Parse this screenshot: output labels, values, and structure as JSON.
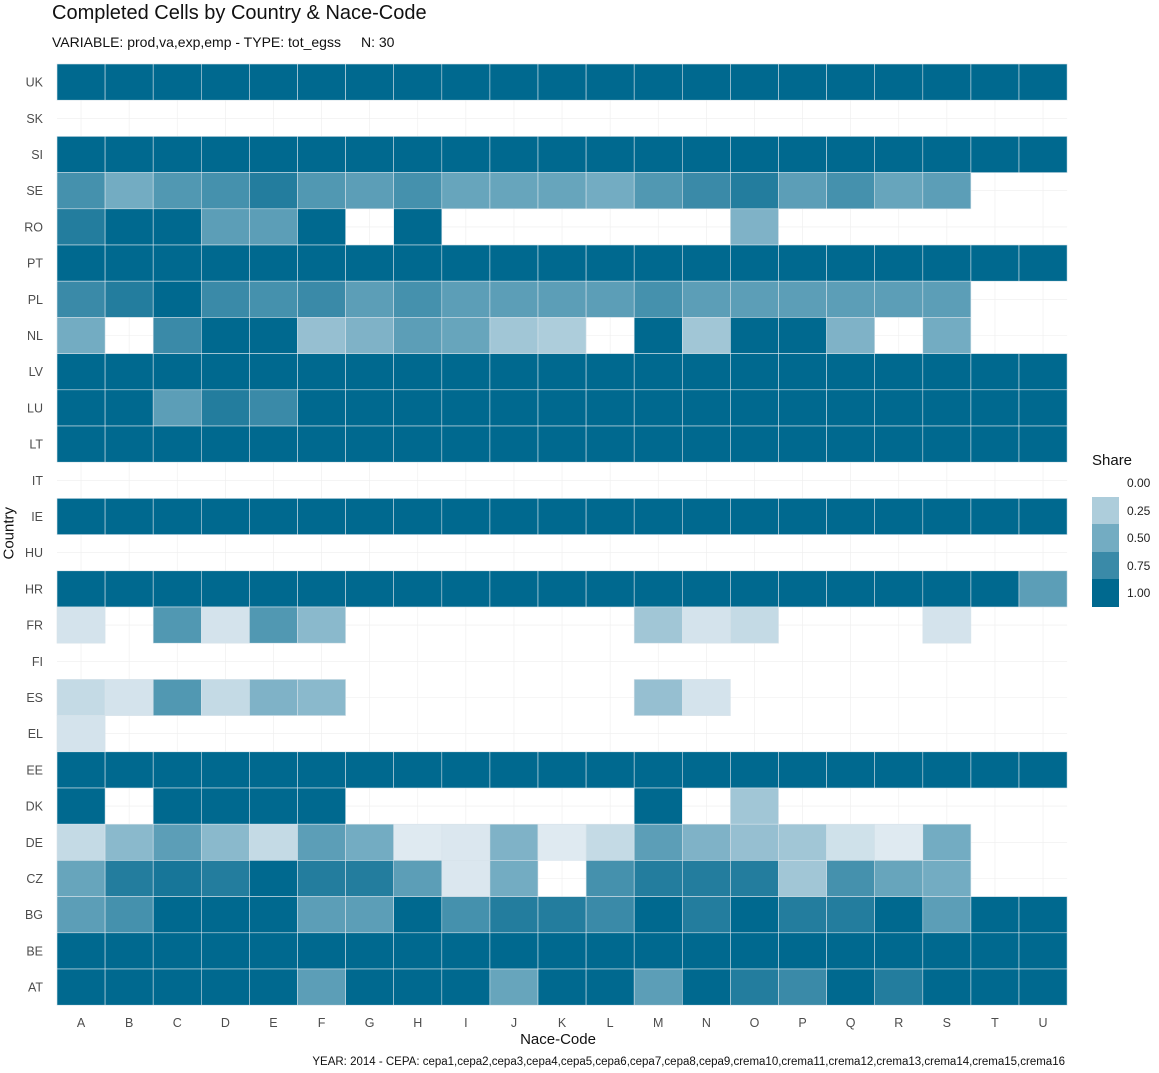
{
  "chart_data": {
    "type": "heatmap",
    "title": "Completed Cells by Country & Nace-Code",
    "subtitle": "VARIABLE: prod,va,exp,emp - TYPE: tot_egss",
    "subtitle_n": "N: 30",
    "xlabel": "Nace-Code",
    "ylabel": "Country",
    "caption": "YEAR: 2014 - CEPA: cepa1,cepa2,cepa3,cepa4,cepa5,cepa6,cepa7,cepa8,cepa9,crema10,crema11,crema12,crema13,crema14,crema15,crema16",
    "x": [
      "A",
      "B",
      "C",
      "D",
      "E",
      "F",
      "G",
      "H",
      "I",
      "J",
      "K",
      "L",
      "M",
      "N",
      "O",
      "P",
      "Q",
      "R",
      "S",
      "T",
      "U"
    ],
    "y": [
      "UK",
      "SK",
      "SI",
      "SE",
      "RO",
      "PT",
      "PL",
      "NL",
      "LV",
      "LU",
      "LT",
      "IT",
      "IE",
      "HU",
      "HR",
      "FR",
      "FI",
      "ES",
      "EL",
      "EE",
      "DK",
      "DE",
      "CZ",
      "BG",
      "BE",
      "AT"
    ],
    "values": [
      [
        1,
        1,
        1,
        1,
        1,
        1,
        1,
        1,
        1,
        1,
        1,
        1,
        1,
        1,
        1,
        1,
        1,
        1,
        1,
        1,
        1
      ],
      [
        null,
        null,
        null,
        null,
        null,
        null,
        null,
        null,
        null,
        null,
        null,
        null,
        null,
        null,
        null,
        null,
        null,
        null,
        null,
        null,
        null
      ],
      [
        1,
        1,
        1,
        1,
        1,
        1,
        1,
        1,
        1,
        1,
        1,
        1,
        1,
        1,
        1,
        1,
        1,
        1,
        1,
        1,
        1
      ],
      [
        0.7,
        0.5,
        0.65,
        0.7,
        0.85,
        0.65,
        0.6,
        0.7,
        0.55,
        0.55,
        0.55,
        0.5,
        0.65,
        0.75,
        0.85,
        0.6,
        0.7,
        0.55,
        0.6,
        null,
        null
      ],
      [
        0.85,
        1,
        1,
        0.6,
        0.6,
        1,
        null,
        1,
        null,
        null,
        null,
        null,
        null,
        null,
        0.45,
        null,
        null,
        null,
        null,
        null,
        null
      ],
      [
        1,
        1,
        1,
        1,
        1,
        1,
        1,
        1,
        1,
        1,
        1,
        1,
        1,
        1,
        1,
        1,
        1,
        1,
        1,
        1,
        1
      ],
      [
        0.75,
        0.85,
        1,
        0.75,
        0.7,
        0.75,
        0.6,
        0.7,
        0.6,
        0.6,
        0.6,
        0.6,
        0.7,
        0.6,
        0.6,
        0.6,
        0.6,
        0.6,
        0.6,
        null,
        null
      ],
      [
        0.5,
        null,
        0.75,
        1,
        1,
        0.35,
        0.45,
        0.6,
        0.55,
        0.3,
        0.25,
        null,
        1,
        0.3,
        1,
        1,
        0.45,
        null,
        0.5,
        null,
        null
      ],
      [
        1,
        1,
        1,
        1,
        1,
        1,
        1,
        1,
        1,
        1,
        1,
        1,
        1,
        1,
        1,
        1,
        1,
        1,
        1,
        1,
        1
      ],
      [
        1,
        1,
        0.6,
        0.85,
        0.75,
        1,
        1,
        1,
        1,
        1,
        1,
        1,
        1,
        1,
        1,
        1,
        1,
        1,
        1,
        1,
        1
      ],
      [
        1,
        1,
        1,
        1,
        1,
        1,
        1,
        1,
        1,
        1,
        1,
        1,
        1,
        1,
        1,
        1,
        1,
        1,
        1,
        1,
        1
      ],
      [
        null,
        null,
        null,
        null,
        null,
        null,
        null,
        null,
        null,
        null,
        null,
        null,
        null,
        null,
        null,
        null,
        null,
        null,
        null,
        null,
        null
      ],
      [
        1,
        1,
        1,
        1,
        1,
        1,
        1,
        1,
        1,
        1,
        1,
        1,
        1,
        1,
        1,
        1,
        1,
        1,
        1,
        1,
        1
      ],
      [
        null,
        null,
        null,
        null,
        null,
        null,
        null,
        null,
        null,
        null,
        null,
        null,
        null,
        null,
        null,
        null,
        null,
        null,
        null,
        null,
        null
      ],
      [
        1,
        1,
        1,
        1,
        1,
        1,
        1,
        1,
        1,
        1,
        1,
        1,
        1,
        1,
        1,
        1,
        1,
        1,
        1,
        1,
        0.6
      ],
      [
        0.08,
        null,
        0.65,
        0.08,
        0.65,
        0.4,
        null,
        null,
        null,
        null,
        null,
        null,
        0.3,
        0.08,
        0.15,
        null,
        null,
        null,
        0.08,
        null,
        null
      ],
      [
        null,
        null,
        null,
        null,
        null,
        null,
        null,
        null,
        null,
        null,
        null,
        null,
        null,
        null,
        null,
        null,
        null,
        null,
        null,
        null,
        null
      ],
      [
        0.15,
        0.08,
        0.65,
        0.15,
        0.45,
        0.4,
        null,
        null,
        null,
        null,
        null,
        null,
        0.35,
        0.08,
        null,
        null,
        null,
        null,
        null,
        null,
        null
      ],
      [
        0.08,
        null,
        null,
        null,
        null,
        null,
        null,
        null,
        null,
        null,
        null,
        null,
        null,
        null,
        null,
        null,
        null,
        null,
        null,
        null,
        null
      ],
      [
        1,
        1,
        1,
        1,
        1,
        1,
        1,
        1,
        1,
        1,
        1,
        1,
        1,
        1,
        1,
        1,
        1,
        1,
        1,
        1,
        1
      ],
      [
        1,
        null,
        1,
        1,
        1,
        1,
        null,
        null,
        null,
        null,
        null,
        null,
        1,
        null,
        0.3,
        null,
        null,
        null,
        null,
        null,
        null
      ],
      [
        0.15,
        0.4,
        0.6,
        0.4,
        0.15,
        0.6,
        0.5,
        0.03,
        0.05,
        0.45,
        0.03,
        0.15,
        0.6,
        0.45,
        0.35,
        0.3,
        0.1,
        0.03,
        0.5,
        null,
        null
      ],
      [
        0.55,
        0.85,
        0.9,
        0.85,
        1,
        0.85,
        0.85,
        0.6,
        0.05,
        0.5,
        null,
        0.7,
        0.85,
        0.85,
        0.85,
        0.3,
        0.7,
        0.55,
        0.5,
        null,
        null
      ],
      [
        0.6,
        0.7,
        1,
        1,
        1,
        0.6,
        0.6,
        1,
        0.7,
        0.85,
        0.85,
        0.75,
        1,
        0.85,
        1,
        0.85,
        0.85,
        1,
        0.6,
        1,
        1
      ],
      [
        1,
        1,
        1,
        1,
        1,
        1,
        1,
        1,
        1,
        1,
        1,
        1,
        1,
        1,
        1,
        1,
        1,
        1,
        1,
        1,
        1
      ],
      [
        1,
        1,
        1,
        1,
        1,
        0.6,
        1,
        1,
        1,
        0.55,
        1,
        1,
        0.6,
        1,
        0.85,
        0.75,
        1,
        0.85,
        1,
        1,
        1
      ]
    ],
    "legend": {
      "title": "Share",
      "breaks": [
        "0.00",
        "0.25",
        "0.50",
        "0.75",
        "1.00"
      ],
      "low_color": "#e6eef4",
      "high_color": "#00698f"
    },
    "cell_border_color": "#d7e3ea",
    "grid": true
  }
}
